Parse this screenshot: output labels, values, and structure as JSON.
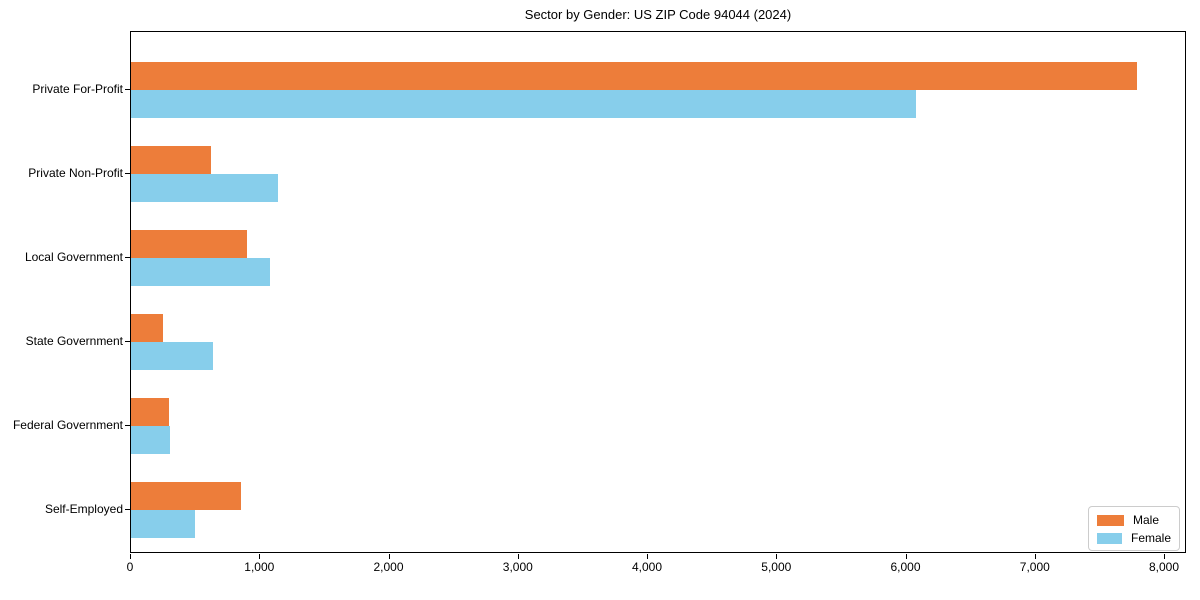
{
  "chart_data": {
    "type": "bar",
    "orientation": "horizontal",
    "title": "Sector by Gender: US ZIP Code 94044 (2024)",
    "categories": [
      "Private For-Profit",
      "Private Non-Profit",
      "Local Government",
      "State Government",
      "Federal Government",
      "Self-Employed"
    ],
    "series": [
      {
        "name": "Male",
        "color": "#ED7D3A",
        "values": [
          7780,
          615,
          895,
          250,
          290,
          850
        ]
      },
      {
        "name": "Female",
        "color": "#87CEEB",
        "values": [
          6070,
          1135,
          1075,
          635,
          300,
          495
        ]
      }
    ],
    "xlim": [
      0,
      8170
    ],
    "xticks": [
      0,
      1000,
      2000,
      3000,
      4000,
      5000,
      6000,
      7000,
      8000
    ],
    "xtick_labels": [
      "0",
      "1,000",
      "2,000",
      "3,000",
      "4,000",
      "5,000",
      "6,000",
      "7,000",
      "8,000"
    ],
    "grid": false,
    "legend_position": "lower right",
    "plot_background": "#ffffff",
    "spine_color": "#000000"
  }
}
